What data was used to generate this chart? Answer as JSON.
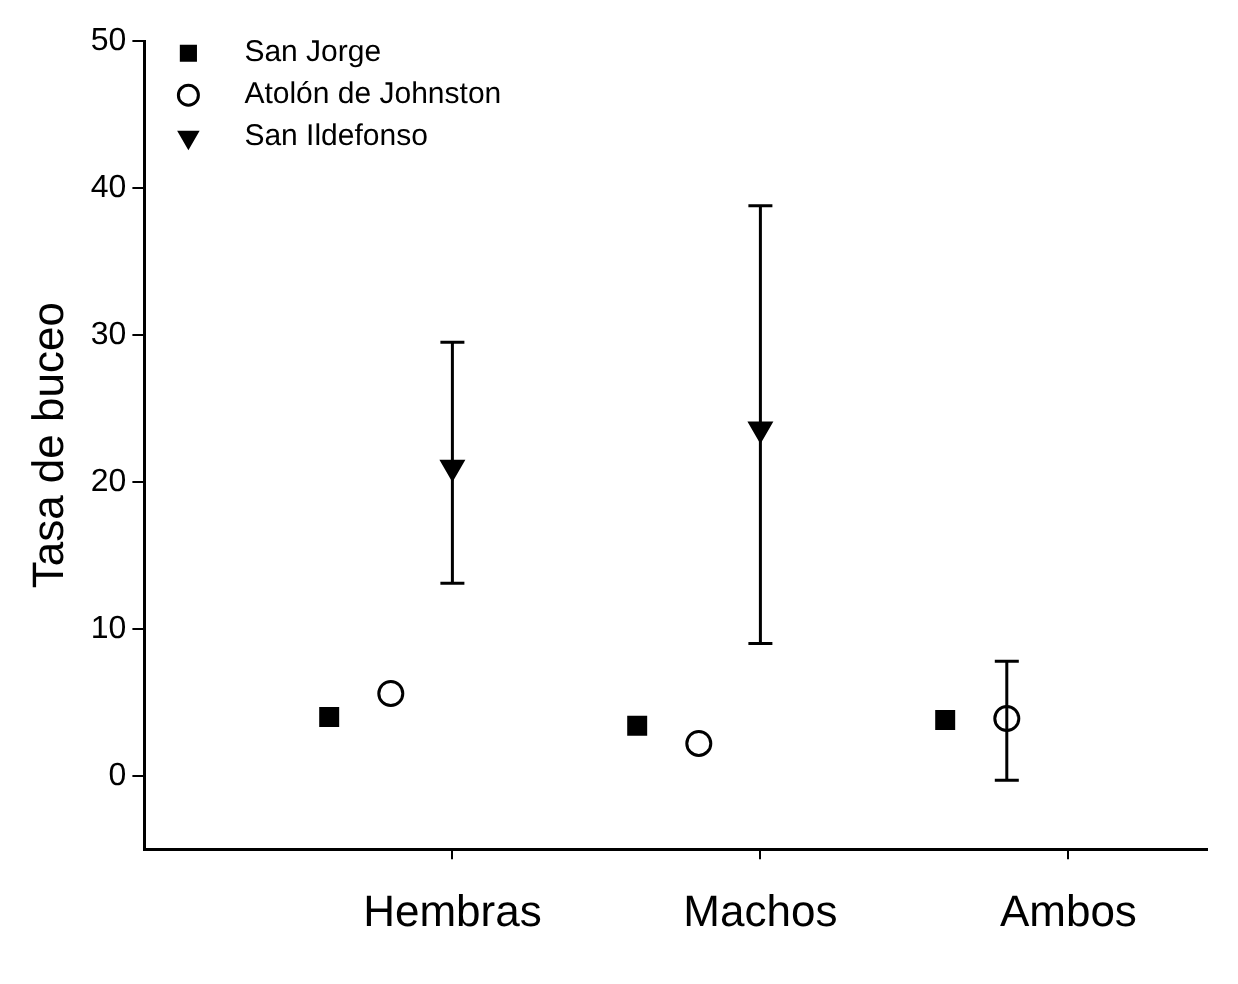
{
  "chart_data": {
    "type": "scatter",
    "ylabel": "Tasa de buceo",
    "categories": [
      "Hembras",
      "Machos",
      "Ambos"
    ],
    "ylim": [
      -5,
      50
    ],
    "yticks": [
      0,
      10,
      20,
      30,
      40,
      50
    ],
    "grid": false,
    "legend": "top left",
    "series": [
      {
        "name": "San Jorge",
        "color": "#000000",
        "marker": "square",
        "values": [
          4.0,
          3.4,
          3.8
        ]
      },
      {
        "name": "Atolón de Johnston",
        "color": "#000000",
        "marker": "circle",
        "values": [
          5.6,
          2.2,
          3.9
        ],
        "errors": [
          null,
          null,
          [
            -0.3,
            7.8
          ]
        ]
      },
      {
        "name": "San Ildefonso",
        "color": "#000000",
        "marker": "triangle",
        "values": [
          21.0,
          23.6,
          null
        ],
        "errors": [
          [
            13.1,
            29.5
          ],
          [
            9.0,
            38.8
          ],
          null
        ]
      }
    ]
  }
}
